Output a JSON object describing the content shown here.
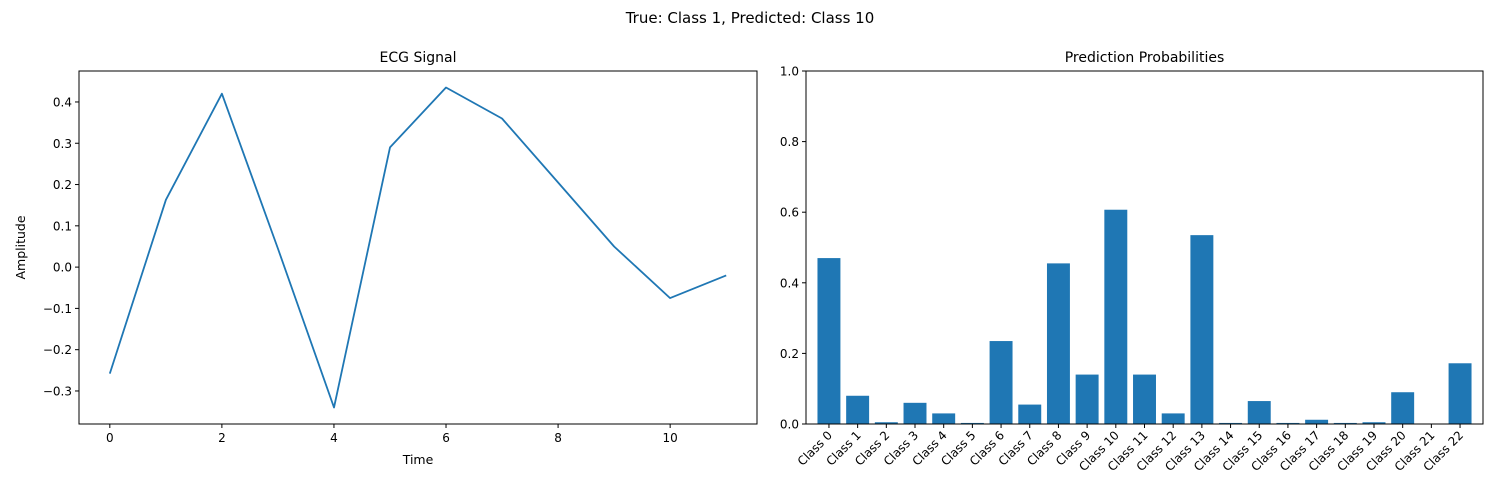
{
  "figure": {
    "suptitle": "True: Class 1, Predicted: Class 10"
  },
  "chart_data": [
    {
      "type": "line",
      "title": "ECG Signal",
      "xlabel": "Time",
      "ylabel": "Amplitude",
      "x": [
        0,
        1,
        2,
        3,
        4,
        5,
        6,
        7,
        8,
        9,
        10,
        11
      ],
      "series": [
        {
          "values": [
            -0.258,
            0.163,
            0.42,
            0.045,
            -0.34,
            0.29,
            0.435,
            0.36,
            0.205,
            0.05,
            -0.075,
            -0.02
          ],
          "color": "#1f77b4"
        }
      ],
      "xlim": [
        -0.55,
        11.55
      ],
      "ylim": [
        -0.38,
        0.475
      ],
      "xticks": [
        0,
        2,
        4,
        6,
        8,
        10
      ],
      "xtick_labels": [
        "0",
        "2",
        "4",
        "6",
        "8",
        "10"
      ],
      "yticks": [
        -0.3,
        -0.2,
        -0.1,
        0.0,
        0.1,
        0.2,
        0.3,
        0.4
      ],
      "ytick_labels": [
        "−0.3",
        "−0.2",
        "−0.1",
        "0.0",
        "0.1",
        "0.2",
        "0.3",
        "0.4"
      ],
      "grid": false
    },
    {
      "type": "bar",
      "title": "Prediction Probabilities",
      "xlabel": "",
      "ylabel": "",
      "categories": [
        "Class 0",
        "Class 1",
        "Class 2",
        "Class 3",
        "Class 4",
        "Class 5",
        "Class 6",
        "Class 7",
        "Class 8",
        "Class 9",
        "Class 10",
        "Class 11",
        "Class 12",
        "Class 13",
        "Class 14",
        "Class 15",
        "Class 16",
        "Class 17",
        "Class 18",
        "Class 19",
        "Class 20",
        "Class 21",
        "Class 22"
      ],
      "values": [
        0.47,
        0.08,
        0.005,
        0.06,
        0.03,
        0.003,
        0.235,
        0.055,
        0.455,
        0.14,
        0.607,
        0.14,
        0.03,
        0.535,
        0.003,
        0.065,
        0.003,
        0.012,
        0.003,
        0.005,
        0.09,
        0.0,
        0.172
      ],
      "color": "#1f77b4",
      "ylim": [
        0,
        1.0
      ],
      "yticks": [
        0.0,
        0.2,
        0.4,
        0.6,
        0.8,
        1.0
      ],
      "ytick_labels": [
        "0.0",
        "0.2",
        "0.4",
        "0.6",
        "0.8",
        "1.0"
      ],
      "grid": false
    }
  ]
}
